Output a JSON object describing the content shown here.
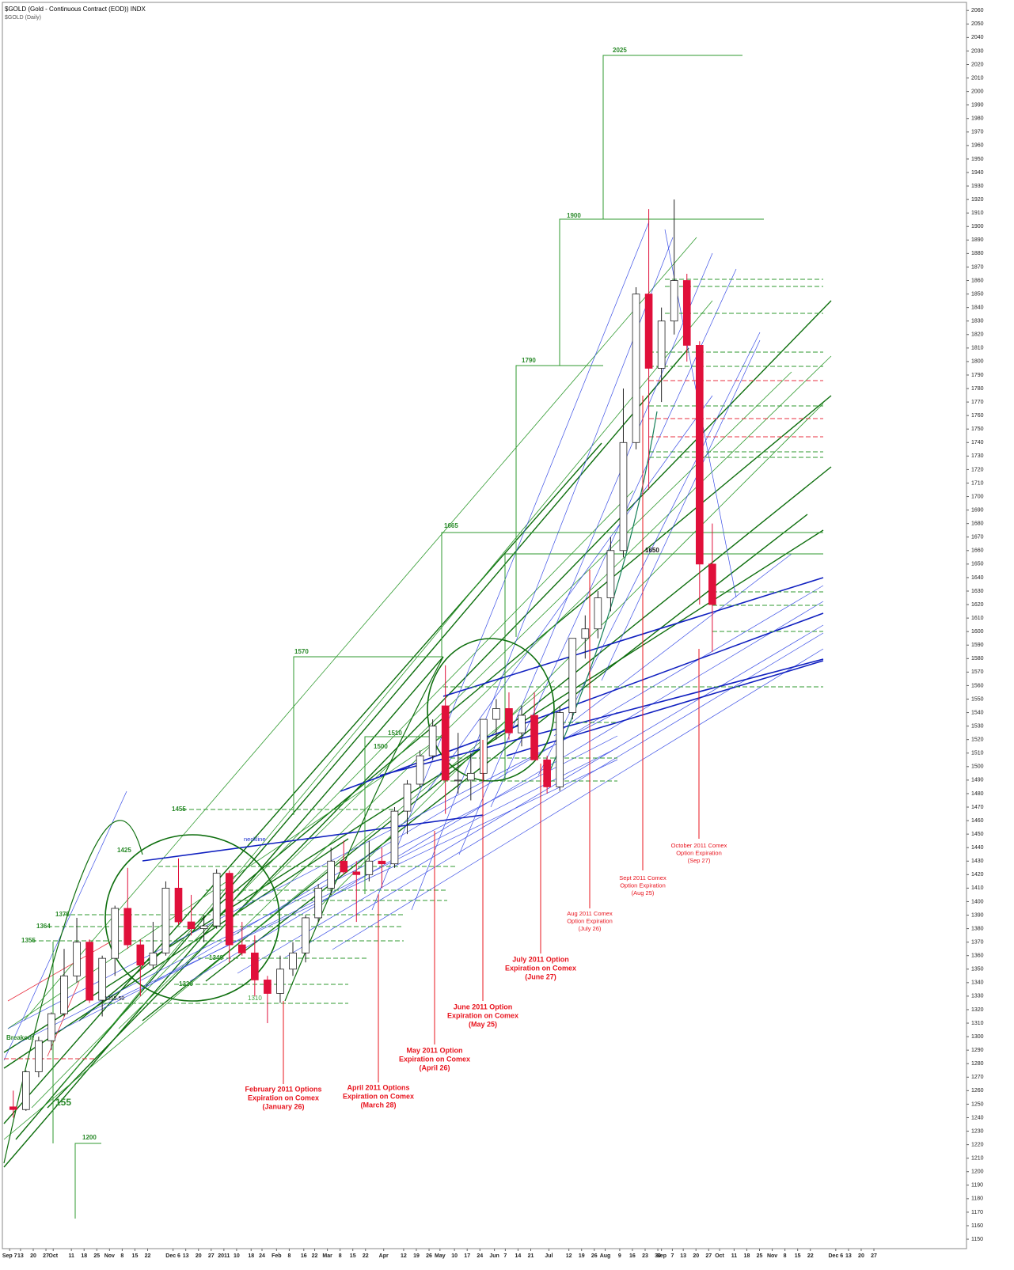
{
  "chart_data": {
    "type": "candlestick",
    "title": "$GOLD (Gold - Continuous Contract (EOD)) INDX",
    "subtitle": "$GOLD (Daily)",
    "x": [
      6,
      13,
      20,
      27,
      34,
      41,
      48,
      55,
      62,
      69,
      76,
      83,
      90,
      97,
      104,
      111,
      118,
      125,
      132,
      139,
      146,
      153,
      160,
      167,
      174,
      181,
      188,
      195,
      202,
      209,
      216,
      223,
      230,
      237,
      244,
      251,
      258,
      265,
      272,
      279,
      286,
      293,
      300,
      307,
      314,
      321,
      328,
      335,
      342,
      349,
      356,
      363,
      370,
      377,
      384,
      391
    ],
    "open": [
      1248,
      1246,
      1274,
      1297,
      1317,
      1345,
      1370,
      1327,
      1358,
      1395,
      1368,
      1353,
      1362,
      1410,
      1385,
      1380,
      1382,
      1421,
      1368,
      1362,
      1342,
      1332,
      1350,
      1362,
      1388,
      1410,
      1430,
      1422,
      1420,
      1430,
      1428,
      1467,
      1487,
      1508,
      1545,
      1490,
      1490,
      1495,
      1535,
      1543,
      1525,
      1538,
      1505,
      1485,
      1540,
      1595,
      1602,
      1625,
      1660,
      1740,
      1850,
      1795,
      1830,
      1860,
      1812,
      1650
    ],
    "high": [
      1260,
      1275,
      1300,
      1318,
      1365,
      1388,
      1372,
      1360,
      1397,
      1425,
      1372,
      1385,
      1415,
      1432,
      1405,
      1390,
      1424,
      1423,
      1385,
      1375,
      1345,
      1360,
      1370,
      1390,
      1413,
      1440,
      1445,
      1430,
      1445,
      1440,
      1470,
      1490,
      1512,
      1535,
      1575,
      1525,
      1510,
      1535,
      1550,
      1555,
      1545,
      1555,
      1508,
      1545,
      1595,
      1612,
      1630,
      1670,
      1780,
      1855,
      1913,
      1840,
      1920,
      1865,
      1815,
      1680
    ],
    "low": [
      1240,
      1245,
      1270,
      1290,
      1315,
      1340,
      1325,
      1315,
      1345,
      1365,
      1330,
      1350,
      1360,
      1383,
      1375,
      1370,
      1380,
      1355,
      1360,
      1330,
      1310,
      1325,
      1345,
      1355,
      1385,
      1405,
      1420,
      1385,
      1415,
      1410,
      1425,
      1450,
      1485,
      1505,
      1465,
      1480,
      1475,
      1490,
      1520,
      1520,
      1515,
      1505,
      1480,
      1482,
      1535,
      1580,
      1595,
      1615,
      1655,
      1735,
      1705,
      1770,
      1820,
      1800,
      1620,
      1585
    ],
    "close": [
      1246,
      1274,
      1297,
      1317,
      1345,
      1370,
      1327,
      1358,
      1395,
      1368,
      1353,
      1362,
      1410,
      1385,
      1380,
      1382,
      1421,
      1368,
      1362,
      1342,
      1332,
      1350,
      1362,
      1388,
      1410,
      1430,
      1422,
      1420,
      1430,
      1428,
      1467,
      1487,
      1508,
      1530,
      1490,
      1490,
      1495,
      1535,
      1543,
      1525,
      1538,
      1505,
      1485,
      1540,
      1595,
      1602,
      1625,
      1660,
      1740,
      1850,
      1795,
      1830,
      1860,
      1812,
      1650,
      1620
    ],
    "up_color": "#ffffff",
    "down_color": "#e0103a",
    "xlim": [
      2,
      533
    ],
    "xticks": [
      {
        "value": 6,
        "label": "Sep 7"
      },
      {
        "value": 12,
        "label": "13"
      },
      {
        "value": 19,
        "label": "20"
      },
      {
        "value": 26,
        "label": "27"
      },
      {
        "value": 30,
        "label": "Oct"
      },
      {
        "value": 40,
        "label": "11"
      },
      {
        "value": 47,
        "label": "18"
      },
      {
        "value": 54,
        "label": "25"
      },
      {
        "value": 61,
        "label": "Nov"
      },
      {
        "value": 68,
        "label": "8"
      },
      {
        "value": 75,
        "label": "15"
      },
      {
        "value": 82,
        "label": "22"
      },
      {
        "value": 96,
        "label": "Dec 6"
      },
      {
        "value": 103,
        "label": "13"
      },
      {
        "value": 110,
        "label": "20"
      },
      {
        "value": 117,
        "label": "27"
      },
      {
        "value": 124,
        "label": "2011"
      },
      {
        "value": 131,
        "label": "10"
      },
      {
        "value": 139,
        "label": "18"
      },
      {
        "value": 145,
        "label": "24"
      },
      {
        "value": 153,
        "label": "Feb"
      },
      {
        "value": 160,
        "label": "8"
      },
      {
        "value": 168,
        "label": "16"
      },
      {
        "value": 174,
        "label": "22"
      },
      {
        "value": 181,
        "label": "Mar"
      },
      {
        "value": 188,
        "label": "8"
      },
      {
        "value": 195,
        "label": "15"
      },
      {
        "value": 202,
        "label": "22"
      },
      {
        "value": 212,
        "label": "Apr"
      },
      {
        "value": 223,
        "label": "12"
      },
      {
        "value": 230,
        "label": "19"
      },
      {
        "value": 237,
        "label": "26"
      },
      {
        "value": 243,
        "label": "May"
      },
      {
        "value": 251,
        "label": "10"
      },
      {
        "value": 258,
        "label": "17"
      },
      {
        "value": 265,
        "label": "24"
      },
      {
        "value": 273,
        "label": "Jun"
      },
      {
        "value": 279,
        "label": "7"
      },
      {
        "value": 286,
        "label": "14"
      },
      {
        "value": 293,
        "label": "21"
      },
      {
        "value": 303,
        "label": "Jul"
      },
      {
        "value": 314,
        "label": "12"
      },
      {
        "value": 321,
        "label": "19"
      },
      {
        "value": 328,
        "label": "26"
      },
      {
        "value": 334,
        "label": "Aug"
      },
      {
        "value": 342,
        "label": "9"
      },
      {
        "value": 349,
        "label": "16"
      },
      {
        "value": 356,
        "label": "23"
      },
      {
        "value": 363,
        "label": "30"
      },
      {
        "value": 365,
        "label": "Sep"
      },
      {
        "value": 371,
        "label": "7"
      },
      {
        "value": 377,
        "label": "13"
      },
      {
        "value": 384,
        "label": "20"
      },
      {
        "value": 391,
        "label": "27"
      },
      {
        "value": 397,
        "label": "Oct"
      },
      {
        "value": 405,
        "label": "11"
      },
      {
        "value": 412,
        "label": "18"
      },
      {
        "value": 419,
        "label": "25"
      },
      {
        "value": 426,
        "label": "Nov"
      },
      {
        "value": 433,
        "label": "8"
      },
      {
        "value": 440,
        "label": "15"
      },
      {
        "value": 447,
        "label": "22"
      },
      {
        "value": 461,
        "label": "Dec 6"
      },
      {
        "value": 468,
        "label": "13"
      },
      {
        "value": 475,
        "label": "20"
      },
      {
        "value": 482,
        "label": "27"
      }
    ],
    "ylim": [
      1143,
      2066
    ],
    "yticks": [
      1150,
      1160,
      1170,
      1180,
      1190,
      1200,
      1210,
      1220,
      1230,
      1240,
      1250,
      1260,
      1270,
      1280,
      1290,
      1300,
      1310,
      1320,
      1330,
      1340,
      1350,
      1360,
      1370,
      1380,
      1390,
      1400,
      1410,
      1420,
      1430,
      1440,
      1450,
      1460,
      1470,
      1480,
      1490,
      1500,
      1510,
      1520,
      1530,
      1540,
      1550,
      1560,
      1570,
      1580,
      1590,
      1600,
      1610,
      1620,
      1630,
      1640,
      1650,
      1660,
      1670,
      1680,
      1690,
      1700,
      1710,
      1720,
      1730,
      1740,
      1750,
      1760,
      1770,
      1780,
      1790,
      1800,
      1810,
      1820,
      1830,
      1840,
      1850,
      1860,
      1870,
      1880,
      1890,
      1900,
      1910,
      1920,
      1930,
      1940,
      1950,
      1960,
      1970,
      1980,
      1990,
      2000,
      2010,
      2020,
      2030,
      2040,
      2050,
      2060
    ],
    "level_labels": [
      "2025",
      "1900",
      "1790",
      "1665",
      "1570",
      "1455",
      "1425",
      "1375",
      "1364",
      "1355",
      "1510",
      "1500",
      "1340",
      "1320",
      "1310",
      "1315.50",
      "1650",
      "1200",
      "155",
      "Breakout",
      "neckline"
    ],
    "expirations": [
      [
        "February 2011 Options",
        "Expiration on Comex",
        "(January 26)"
      ],
      [
        "April 2011 Options",
        "Expiration on Comex",
        "(March 28)"
      ],
      [
        "May 2011 Option",
        "Expiration on Comex",
        "(April 26)"
      ],
      [
        "June 2011 Option",
        "Expiration on Comex",
        "(May 25)"
      ],
      [
        "July 2011 Option",
        "Expiration on Comex",
        "(June 27)"
      ],
      [
        "Aug 2011 Comex",
        "Option Expiration",
        "(July 26)"
      ],
      [
        "Sept 2011 Comex",
        "Option Expiration",
        "(Aug 25)"
      ],
      [
        "October 2011 Comex",
        "Option Expiration",
        "(Sep 27)"
      ]
    ]
  }
}
